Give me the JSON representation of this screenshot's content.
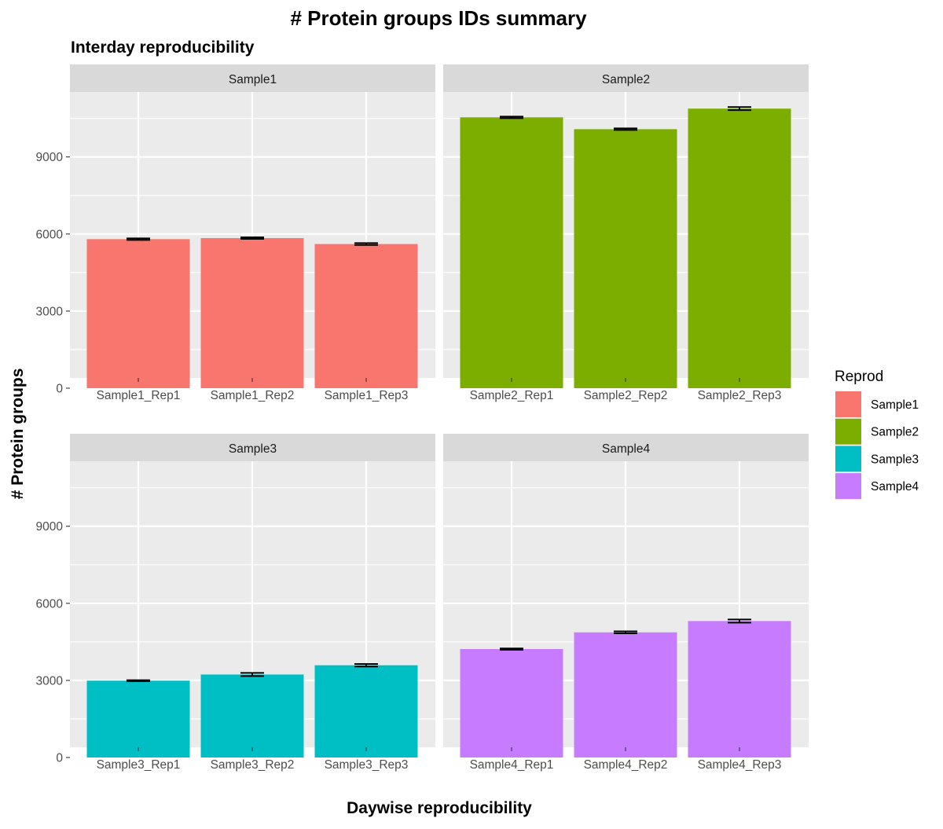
{
  "chart_data": {
    "type": "bar",
    "title": "# Protein groups IDs summary",
    "subtitle": "Interday reproducibility",
    "xlabel": "Daywise reproducibility",
    "ylabel": "# Protein groups",
    "ylim": [
      0,
      11000
    ],
    "yticks": [
      0,
      3000,
      6000,
      9000
    ],
    "grid": true,
    "legend": {
      "title": "Reprod",
      "position": "right",
      "entries": [
        "Sample1",
        "Sample2",
        "Sample3",
        "Sample4"
      ]
    },
    "colors": {
      "Sample1": "#F8766D",
      "Sample2": "#7CAE00",
      "Sample3": "#00BFC4",
      "Sample4": "#C77CFF",
      "panel_bg": "#EBEBEB",
      "strip_bg": "#D9D9D9",
      "grid": "#FFFFFF"
    },
    "facets": [
      {
        "name": "Sample1",
        "categories": [
          "Sample1_Rep1",
          "Sample1_Rep2",
          "Sample1_Rep3"
        ],
        "values": [
          5800,
          5840,
          5610
        ],
        "errors": [
          30,
          30,
          35
        ]
      },
      {
        "name": "Sample2",
        "categories": [
          "Sample2_Rep1",
          "Sample2_Rep2",
          "Sample2_Rep3"
        ],
        "values": [
          10540,
          10080,
          10880
        ],
        "errors": [
          30,
          30,
          60
        ]
      },
      {
        "name": "Sample3",
        "categories": [
          "Sample3_Rep1",
          "Sample3_Rep2",
          "Sample3_Rep3"
        ],
        "values": [
          2990,
          3230,
          3590
        ],
        "errors": [
          20,
          60,
          50
        ]
      },
      {
        "name": "Sample4",
        "categories": [
          "Sample4_Rep1",
          "Sample4_Rep2",
          "Sample4_Rep3"
        ],
        "values": [
          4220,
          4870,
          5310
        ],
        "errors": [
          25,
          40,
          60
        ]
      }
    ]
  }
}
